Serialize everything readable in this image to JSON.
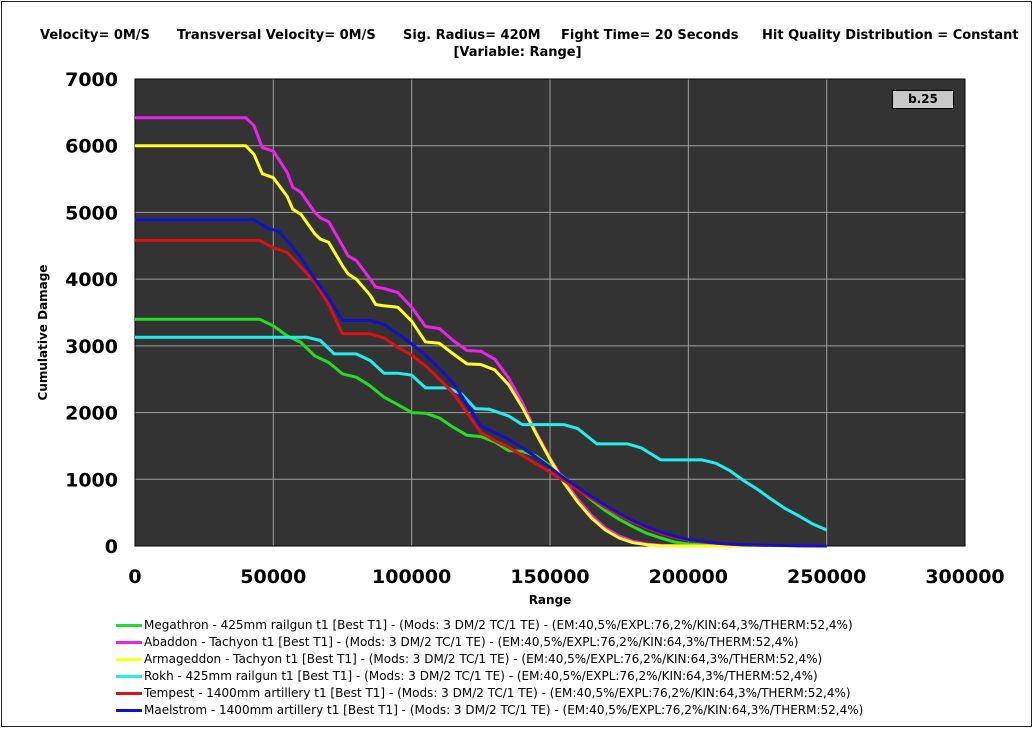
{
  "header": {
    "velocity": "Velocity= 0M/S",
    "transversal": "Transversal Velocity= 0M/S",
    "sig_radius": "Sig. Radius= 420M",
    "fight_time": "Fight Time= 20 Seconds",
    "hit_quality": "Hit Quality Distribution = Constant",
    "variable": "[Variable: Range]"
  },
  "badge": "b.25",
  "chart_data": {
    "type": "line",
    "xlabel": "Range",
    "ylabel": "Cumulative Damage",
    "xlim": [
      0,
      300000
    ],
    "ylim": [
      0,
      7000
    ],
    "x_ticks": [
      "0",
      "50000",
      "100000",
      "150000",
      "200000",
      "250000",
      "300000"
    ],
    "y_ticks": [
      "0",
      "1000",
      "2000",
      "3000",
      "4000",
      "5000",
      "6000",
      "7000"
    ],
    "grid": true,
    "legend_position": "bottom",
    "plot_background": "#333333",
    "series": [
      {
        "name": "Megathron - 425mm railgun t1 [Best T1] - (Mods: 3 DM/2 TC/1 TE) - (EM:40,5%/EXPL:76,2%/KIN:64,3%/THERM:52,4%)",
        "color": "#22dd22",
        "points": [
          [
            0,
            3400
          ],
          [
            45000,
            3400
          ],
          [
            50000,
            3300
          ],
          [
            55000,
            3150
          ],
          [
            60000,
            3050
          ],
          [
            65000,
            2850
          ],
          [
            70000,
            2750
          ],
          [
            75000,
            2580
          ],
          [
            80000,
            2530
          ],
          [
            85000,
            2400
          ],
          [
            90000,
            2230
          ],
          [
            95000,
            2120
          ],
          [
            100000,
            2000
          ],
          [
            105000,
            1990
          ],
          [
            110000,
            1920
          ],
          [
            115000,
            1780
          ],
          [
            120000,
            1660
          ],
          [
            125000,
            1640
          ],
          [
            130000,
            1560
          ],
          [
            135000,
            1430
          ],
          [
            140000,
            1420
          ],
          [
            145000,
            1350
          ],
          [
            150000,
            1200
          ],
          [
            155000,
            1030
          ],
          [
            160000,
            860
          ],
          [
            165000,
            690
          ],
          [
            170000,
            530
          ],
          [
            175000,
            400
          ],
          [
            180000,
            290
          ],
          [
            185000,
            190
          ],
          [
            190000,
            120
          ],
          [
            195000,
            60
          ],
          [
            200000,
            30
          ],
          [
            210000,
            10
          ],
          [
            220000,
            0
          ],
          [
            250000,
            0
          ]
        ]
      },
      {
        "name": "Abaddon - Tachyon t1 [Best T1] - (Mods: 3 DM/2 TC/1 TE) - (EM:40,5%/EXPL:76,2%/KIN:64,3%/THERM:52,4%)",
        "color": "#ee22ee",
        "points": [
          [
            0,
            6420
          ],
          [
            40000,
            6420
          ],
          [
            43000,
            6300
          ],
          [
            46000,
            5970
          ],
          [
            50000,
            5920
          ],
          [
            55000,
            5600
          ],
          [
            57000,
            5380
          ],
          [
            60000,
            5300
          ],
          [
            65000,
            5000
          ],
          [
            67000,
            4920
          ],
          [
            70000,
            4860
          ],
          [
            75000,
            4500
          ],
          [
            77000,
            4350
          ],
          [
            80000,
            4280
          ],
          [
            85000,
            4000
          ],
          [
            87000,
            3880
          ],
          [
            90000,
            3860
          ],
          [
            95000,
            3800
          ],
          [
            100000,
            3580
          ],
          [
            105000,
            3290
          ],
          [
            110000,
            3260
          ],
          [
            115000,
            3080
          ],
          [
            120000,
            2930
          ],
          [
            125000,
            2920
          ],
          [
            130000,
            2800
          ],
          [
            135000,
            2520
          ],
          [
            140000,
            2150
          ],
          [
            145000,
            1700
          ],
          [
            150000,
            1320
          ],
          [
            155000,
            980
          ],
          [
            160000,
            700
          ],
          [
            165000,
            460
          ],
          [
            170000,
            270
          ],
          [
            175000,
            150
          ],
          [
            180000,
            70
          ],
          [
            185000,
            30
          ],
          [
            190000,
            10
          ],
          [
            200000,
            0
          ],
          [
            250000,
            0
          ]
        ]
      },
      {
        "name": "Armageddon - Tachyon t1 [Best T1] - (Mods: 3 DM/2 TC/1 TE) - (EM:40,5%/EXPL:76,2%/KIN:64,3%/THERM:52,4%)",
        "color": "#ffff22",
        "points": [
          [
            0,
            6000
          ],
          [
            40000,
            6000
          ],
          [
            43000,
            5870
          ],
          [
            46000,
            5580
          ],
          [
            50000,
            5520
          ],
          [
            55000,
            5240
          ],
          [
            57000,
            5050
          ],
          [
            60000,
            4970
          ],
          [
            65000,
            4680
          ],
          [
            67000,
            4600
          ],
          [
            70000,
            4550
          ],
          [
            75000,
            4200
          ],
          [
            77000,
            4080
          ],
          [
            80000,
            4000
          ],
          [
            85000,
            3760
          ],
          [
            87000,
            3620
          ],
          [
            90000,
            3600
          ],
          [
            95000,
            3580
          ],
          [
            100000,
            3370
          ],
          [
            105000,
            3060
          ],
          [
            110000,
            3040
          ],
          [
            115000,
            2880
          ],
          [
            120000,
            2730
          ],
          [
            125000,
            2720
          ],
          [
            130000,
            2640
          ],
          [
            135000,
            2420
          ],
          [
            140000,
            2080
          ],
          [
            145000,
            1680
          ],
          [
            150000,
            1300
          ],
          [
            155000,
            950
          ],
          [
            160000,
            660
          ],
          [
            165000,
            420
          ],
          [
            170000,
            240
          ],
          [
            175000,
            120
          ],
          [
            180000,
            50
          ],
          [
            185000,
            20
          ],
          [
            190000,
            5
          ],
          [
            200000,
            0
          ],
          [
            250000,
            0
          ]
        ]
      },
      {
        "name": "Rokh - 425mm railgun t1 [Best T1] - (Mods: 3 DM/2 TC/1 TE) - (EM:40,5%/EXPL:76,2%/KIN:64,3%/THERM:52,4%)",
        "color": "#22eeee",
        "points": [
          [
            0,
            3130
          ],
          [
            62000,
            3130
          ],
          [
            67000,
            3080
          ],
          [
            72000,
            2880
          ],
          [
            80000,
            2880
          ],
          [
            85000,
            2780
          ],
          [
            90000,
            2590
          ],
          [
            95000,
            2590
          ],
          [
            100000,
            2560
          ],
          [
            105000,
            2370
          ],
          [
            113000,
            2370
          ],
          [
            118000,
            2280
          ],
          [
            123000,
            2060
          ],
          [
            128000,
            2050
          ],
          [
            135000,
            1950
          ],
          [
            140000,
            1820
          ],
          [
            155000,
            1820
          ],
          [
            160000,
            1760
          ],
          [
            167000,
            1530
          ],
          [
            178000,
            1530
          ],
          [
            183000,
            1470
          ],
          [
            190000,
            1290
          ],
          [
            205000,
            1290
          ],
          [
            210000,
            1240
          ],
          [
            215000,
            1130
          ],
          [
            220000,
            980
          ],
          [
            225000,
            850
          ],
          [
            230000,
            700
          ],
          [
            235000,
            560
          ],
          [
            240000,
            450
          ],
          [
            245000,
            330
          ],
          [
            250000,
            240
          ]
        ]
      },
      {
        "name": "Tempest - 1400mm artillery t1 [Best T1] - (Mods: 3 DM/2 TC/1 TE) - (EM:40,5%/EXPL:76,2%/KIN:64,3%/THERM:52,4%)",
        "color": "#dd1111",
        "points": [
          [
            0,
            4580
          ],
          [
            45000,
            4580
          ],
          [
            50000,
            4470
          ],
          [
            55000,
            4400
          ],
          [
            60000,
            4180
          ],
          [
            65000,
            3950
          ],
          [
            70000,
            3620
          ],
          [
            75000,
            3180
          ],
          [
            85000,
            3180
          ],
          [
            90000,
            3120
          ],
          [
            95000,
            2980
          ],
          [
            100000,
            2860
          ],
          [
            105000,
            2700
          ],
          [
            110000,
            2500
          ],
          [
            115000,
            2290
          ],
          [
            120000,
            2000
          ],
          [
            125000,
            1700
          ],
          [
            130000,
            1580
          ],
          [
            135000,
            1480
          ],
          [
            140000,
            1360
          ],
          [
            145000,
            1230
          ],
          [
            150000,
            1110
          ],
          [
            155000,
            980
          ],
          [
            160000,
            840
          ],
          [
            165000,
            710
          ],
          [
            170000,
            580
          ],
          [
            175000,
            460
          ],
          [
            180000,
            360
          ],
          [
            185000,
            270
          ],
          [
            190000,
            190
          ],
          [
            195000,
            130
          ],
          [
            200000,
            90
          ],
          [
            205000,
            60
          ],
          [
            210000,
            40
          ],
          [
            215000,
            25
          ],
          [
            220000,
            15
          ],
          [
            230000,
            10
          ],
          [
            240000,
            5
          ],
          [
            250000,
            0
          ]
        ]
      },
      {
        "name": "Maelstrom - 1400mm artillery t1 [Best T1] - (Mods: 3 DM/2 TC/1 TE) - (EM:40,5%/EXPL:76,2%/KIN:64,3%/THERM:52,4%)",
        "color": "#1111cc",
        "points": [
          [
            0,
            4890
          ],
          [
            43000,
            4890
          ],
          [
            48000,
            4760
          ],
          [
            52000,
            4720
          ],
          [
            56000,
            4530
          ],
          [
            60000,
            4320
          ],
          [
            65000,
            4000
          ],
          [
            70000,
            3720
          ],
          [
            75000,
            3380
          ],
          [
            85000,
            3380
          ],
          [
            90000,
            3320
          ],
          [
            95000,
            3180
          ],
          [
            100000,
            3030
          ],
          [
            105000,
            2860
          ],
          [
            110000,
            2660
          ],
          [
            115000,
            2440
          ],
          [
            120000,
            2130
          ],
          [
            125000,
            1800
          ],
          [
            130000,
            1700
          ],
          [
            135000,
            1600
          ],
          [
            140000,
            1470
          ],
          [
            145000,
            1330
          ],
          [
            150000,
            1180
          ],
          [
            155000,
            1020
          ],
          [
            160000,
            880
          ],
          [
            165000,
            740
          ],
          [
            170000,
            610
          ],
          [
            175000,
            490
          ],
          [
            180000,
            380
          ],
          [
            185000,
            290
          ],
          [
            190000,
            210
          ],
          [
            195000,
            150
          ],
          [
            200000,
            100
          ],
          [
            205000,
            70
          ],
          [
            210000,
            45
          ],
          [
            215000,
            30
          ],
          [
            220000,
            20
          ],
          [
            230000,
            10
          ],
          [
            240000,
            5
          ],
          [
            250000,
            0
          ]
        ]
      }
    ]
  }
}
